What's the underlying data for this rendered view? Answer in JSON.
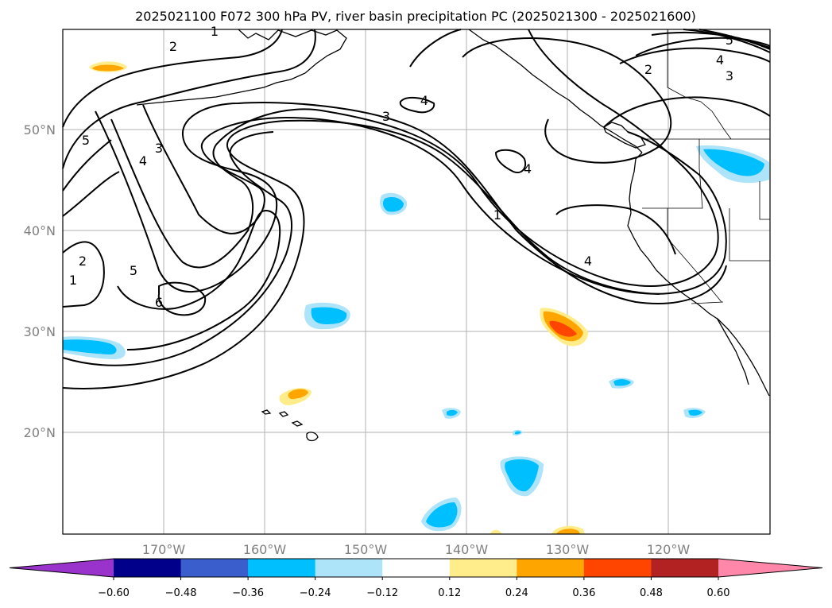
{
  "title": "2025021100 F072 300 hPa PV, river basin precipitation PC (2025021300 - 2025021600)",
  "lat_labels": [
    "50°N",
    "40°N",
    "30°N",
    "20°N"
  ],
  "lon_labels": [
    "170°W",
    "160°W",
    "150°W",
    "140°W",
    "130°W",
    "120°W"
  ],
  "colorbar": {
    "tick_labels": [
      "−0.60",
      "−0.48",
      "−0.36",
      "−0.24",
      "−0.12",
      "0.12",
      "0.24",
      "0.36",
      "0.48",
      "0.60"
    ],
    "colors": [
      "#9933cc",
      "#00008b",
      "#3a5fcd",
      "#00bfff",
      "#aee4fa",
      "#ffffff",
      "#ffec8b",
      "#ffa500",
      "#ff4500",
      "#b22222",
      "#ff88aa"
    ]
  },
  "contour_labels": [
    "1",
    "2",
    "3",
    "4",
    "5",
    "6"
  ],
  "map_extent": {
    "lon": [
      -180,
      -110
    ],
    "lat": [
      10,
      60
    ]
  }
}
